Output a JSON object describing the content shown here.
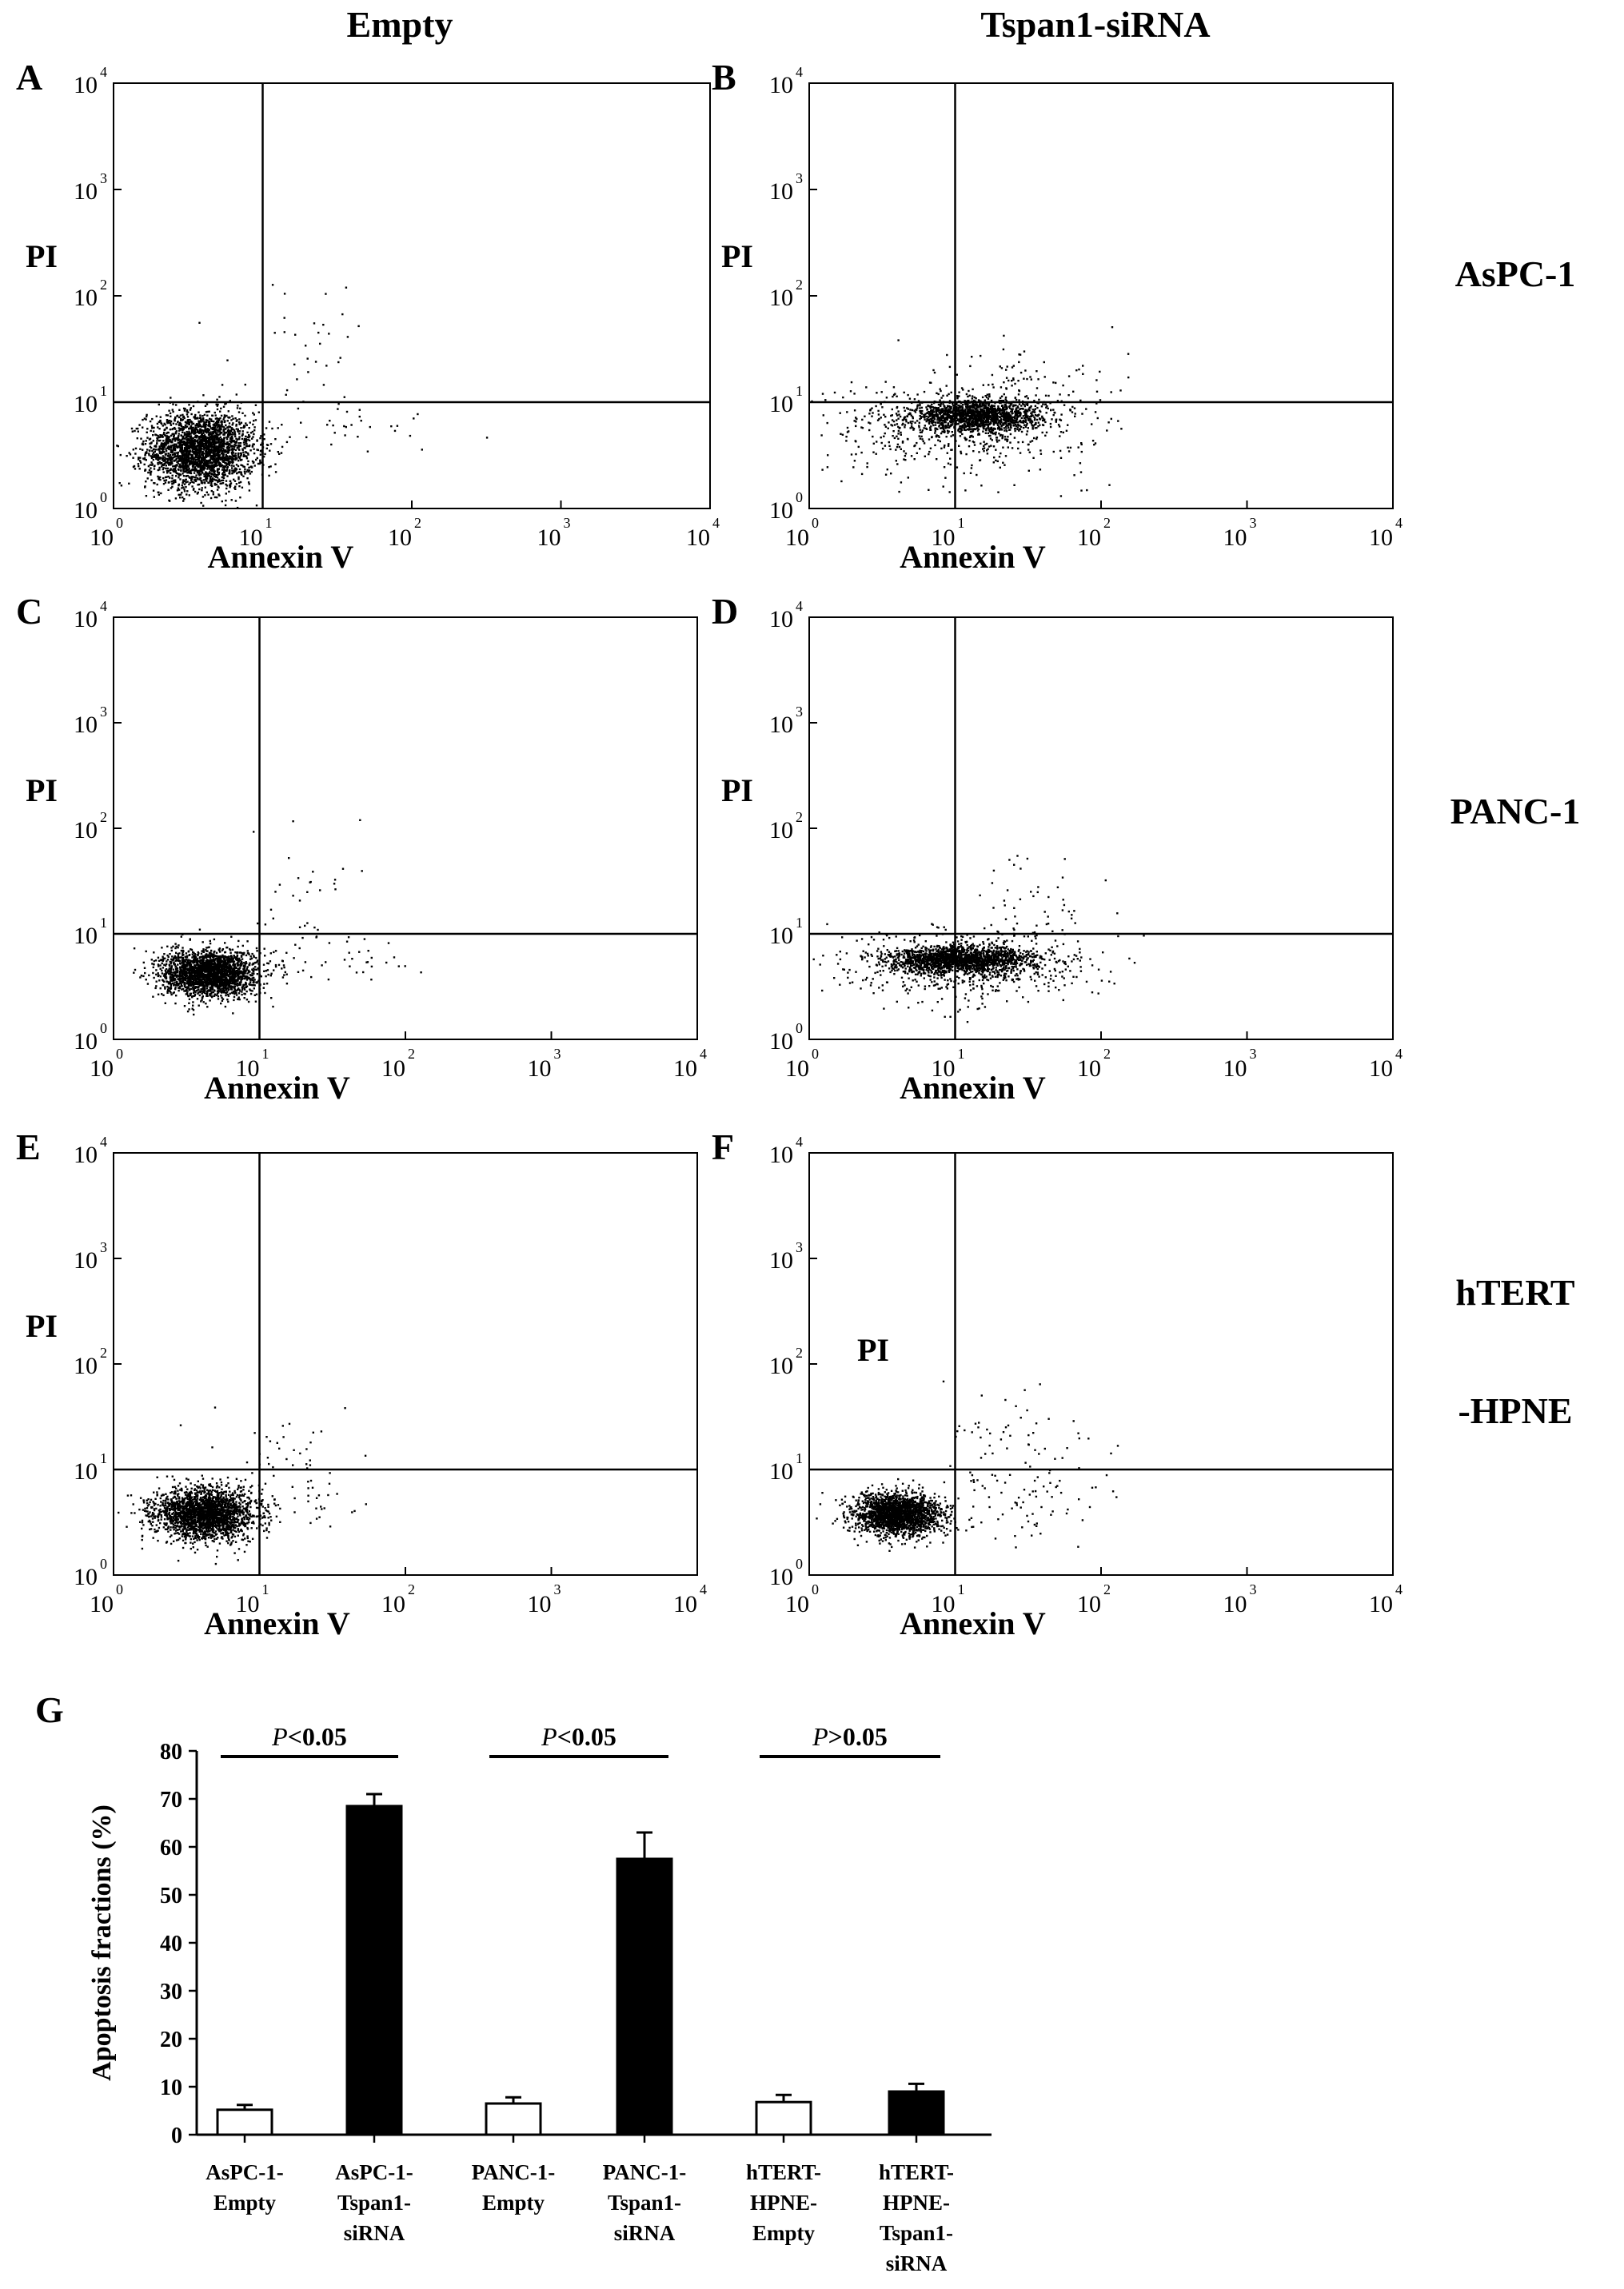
{
  "figure": {
    "column_headers": [
      "Empty",
      "Tspan1-siRNA"
    ],
    "row_labels": [
      [
        "AsPC-1"
      ],
      [
        "PANC-1"
      ],
      [
        "hTERT",
        "-HPNE"
      ]
    ]
  },
  "chart_data": [
    {
      "panel": "A",
      "type": "scatter",
      "xlabel": "Annexin V",
      "ylabel": "PI",
      "xscale": "log",
      "yscale": "log",
      "xlim": [
        1,
        10000
      ],
      "ylim": [
        1,
        10000
      ],
      "xticks": [
        "10",
        "10",
        "10",
        "10",
        "10"
      ],
      "xtick_exponents": [
        "0",
        "1",
        "2",
        "3",
        "4"
      ],
      "yticks": [
        "10",
        "10",
        "10",
        "10",
        "10"
      ],
      "ytick_exponents": [
        "0",
        "1",
        "2",
        "3",
        "4"
      ],
      "quadrant_gate": [
        10,
        10
      ],
      "populations": [
        {
          "center": [
            3.8,
            3.6
          ],
          "spread": [
            0.18,
            0.18
          ],
          "n": 2600
        },
        {
          "center": [
            22,
            30
          ],
          "spread": [
            0.28,
            0.35
          ],
          "n": 40
        },
        {
          "center": [
            40,
            6
          ],
          "spread": [
            0.4,
            0.18
          ],
          "n": 25
        }
      ]
    },
    {
      "panel": "B",
      "type": "scatter",
      "xlabel": "Annexin V",
      "ylabel": "PI",
      "xscale": "log",
      "yscale": "log",
      "xlim": [
        1,
        10000
      ],
      "ylim": [
        1,
        10000
      ],
      "xticks": [
        "10",
        "10",
        "10",
        "10",
        "10"
      ],
      "xtick_exponents": [
        "0",
        "1",
        "2",
        "3",
        "4"
      ],
      "yticks": [
        "10",
        "10",
        "10",
        "10",
        "10"
      ],
      "ytick_exponents": [
        "0",
        "1",
        "2",
        "3",
        "4"
      ],
      "quadrant_gate": [
        10,
        10
      ],
      "populations": [
        {
          "center": [
            14,
            7.5
          ],
          "spread": [
            0.22,
            0.07
          ],
          "n": 1500
        },
        {
          "center": [
            10,
            6
          ],
          "spread": [
            0.45,
            0.22
          ],
          "n": 550
        },
        {
          "center": [
            30,
            14
          ],
          "spread": [
            0.35,
            0.22
          ],
          "n": 80
        }
      ]
    },
    {
      "panel": "C",
      "type": "scatter",
      "xlabel": "Annexin V",
      "ylabel": "PI",
      "xscale": "log",
      "yscale": "log",
      "xlim": [
        1,
        10000
      ],
      "ylim": [
        1,
        10000
      ],
      "xticks": [
        "10",
        "10",
        "10",
        "10",
        "10"
      ],
      "xtick_exponents": [
        "0",
        "1",
        "2",
        "3",
        "4"
      ],
      "yticks": [
        "10",
        "10",
        "10",
        "10",
        "10"
      ],
      "ytick_exponents": [
        "0",
        "1",
        "2",
        "3",
        "4"
      ],
      "quadrant_gate": [
        10,
        10
      ],
      "populations": [
        {
          "center": [
            4.5,
            4.3
          ],
          "spread": [
            0.16,
            0.11
          ],
          "n": 2300
        },
        {
          "center": [
            22,
            20
          ],
          "spread": [
            0.25,
            0.3
          ],
          "n": 35
        },
        {
          "center": [
            30,
            6
          ],
          "spread": [
            0.3,
            0.15
          ],
          "n": 35
        }
      ]
    },
    {
      "panel": "D",
      "type": "scatter",
      "xlabel": "Annexin V",
      "ylabel": "PI",
      "xscale": "log",
      "yscale": "log",
      "xlim": [
        1,
        10000
      ],
      "ylim": [
        1,
        10000
      ],
      "xticks": [
        "10",
        "10",
        "10",
        "10",
        "10"
      ],
      "xtick_exponents": [
        "0",
        "1",
        "2",
        "3",
        "4"
      ],
      "yticks": [
        "10",
        "10",
        "10",
        "10",
        "10"
      ],
      "ytick_exponents": [
        "0",
        "1",
        "2",
        "3",
        "4"
      ],
      "quadrant_gate": [
        10,
        10
      ],
      "populations": [
        {
          "center": [
            11,
            5.8
          ],
          "spread": [
            0.25,
            0.06
          ],
          "n": 1600
        },
        {
          "center": [
            12,
            5
          ],
          "spread": [
            0.4,
            0.17
          ],
          "n": 600
        },
        {
          "center": [
            35,
            20
          ],
          "spread": [
            0.3,
            0.3
          ],
          "n": 50
        }
      ]
    },
    {
      "panel": "E",
      "type": "scatter",
      "xlabel": "Annexin V",
      "ylabel": "PI",
      "xscale": "log",
      "yscale": "log",
      "xlim": [
        1,
        10000
      ],
      "ylim": [
        1,
        10000
      ],
      "xticks": [
        "10",
        "10",
        "10",
        "10",
        "10"
      ],
      "xtick_exponents": [
        "0",
        "1",
        "2",
        "3",
        "4"
      ],
      "yticks": [
        "10",
        "10",
        "10",
        "10",
        "10"
      ],
      "ytick_exponents": [
        "0",
        "1",
        "2",
        "3",
        "4"
      ],
      "quadrant_gate": [
        10,
        10
      ],
      "populations": [
        {
          "center": [
            4.2,
            3.9
          ],
          "spread": [
            0.17,
            0.12
          ],
          "n": 2300
        },
        {
          "center": [
            18,
            12
          ],
          "spread": [
            0.22,
            0.25
          ],
          "n": 40
        },
        {
          "center": [
            22,
            5
          ],
          "spread": [
            0.2,
            0.12
          ],
          "n": 25
        }
      ]
    },
    {
      "panel": "F",
      "type": "scatter",
      "xlabel": "Annexin V",
      "ylabel": "PI",
      "xscale": "log",
      "yscale": "log",
      "xlim": [
        1,
        10000
      ],
      "ylim": [
        1,
        10000
      ],
      "xticks": [
        "10",
        "10",
        "10",
        "10",
        "10"
      ],
      "xtick_exponents": [
        "0",
        "1",
        "2",
        "3",
        "4"
      ],
      "yticks": [
        "10",
        "10",
        "10",
        "10",
        "10"
      ],
      "ytick_exponents": [
        "0",
        "1",
        "2",
        "3",
        "4"
      ],
      "quadrant_gate": [
        10,
        10
      ],
      "populations": [
        {
          "center": [
            4.0,
            3.8
          ],
          "spread": [
            0.15,
            0.1
          ],
          "n": 2000
        },
        {
          "center": [
            30,
            12
          ],
          "spread": [
            0.35,
            0.3
          ],
          "n": 90
        },
        {
          "center": [
            28,
            4
          ],
          "spread": [
            0.3,
            0.15
          ],
          "n": 40
        }
      ]
    },
    {
      "panel": "G",
      "type": "bar",
      "ylabel": "Apoptosis fractions (%)",
      "ylim": [
        0,
        80
      ],
      "yticks": [
        0,
        10,
        20,
        30,
        40,
        50,
        60,
        70,
        80
      ],
      "categories": [
        [
          "AsPC-1-",
          "Empty"
        ],
        [
          "AsPC-1-",
          "Tspan1-",
          "siRNA"
        ],
        [
          "PANC-1-",
          "Empty"
        ],
        [
          "PANC-1-",
          "Tspan1-",
          "siRNA"
        ],
        [
          "hTERT-",
          "HPNE-",
          "Empty"
        ],
        [
          "hTERT-",
          "HPNE-",
          "Tspan1-",
          "siRNA"
        ]
      ],
      "values": [
        5.2,
        68.5,
        6.5,
        57.5,
        6.8,
        9.0
      ],
      "errors": [
        1.0,
        2.5,
        1.3,
        5.5,
        1.5,
        1.6
      ],
      "fills": [
        "#ffffff",
        "#000000",
        "#ffffff",
        "#000000",
        "#ffffff",
        "#000000"
      ],
      "significance": [
        {
          "between": [
            0,
            1
          ],
          "p_symbol": "P",
          "text": "<0.05"
        },
        {
          "between": [
            2,
            3
          ],
          "p_symbol": "P",
          "text": "<0.05"
        },
        {
          "between": [
            4,
            5
          ],
          "p_symbol": "P",
          "text": ">0.05"
        }
      ]
    }
  ]
}
